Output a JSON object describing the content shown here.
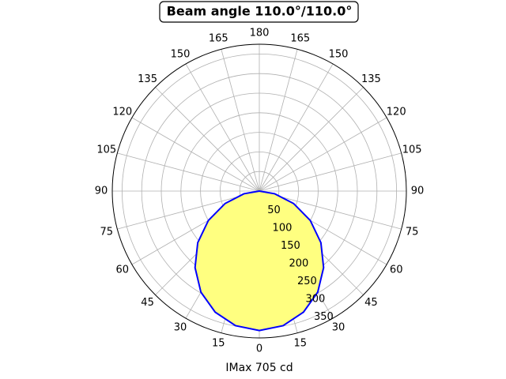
{
  "chart_data": {
    "type": "polar",
    "title": "Beam angle 110.0°/110.0°",
    "xlabel": "IMax 705 cd",
    "x": [
      -90,
      -80,
      -70,
      -60,
      -50,
      -40,
      -30,
      -20,
      -10,
      0,
      10,
      20,
      30,
      40,
      50,
      60,
      70,
      80,
      90
    ],
    "series": [
      {
        "color": "#0000ff",
        "fill": "#ffff80",
        "values": [
          0,
          40,
          93,
          150,
          205,
          255,
          298,
          329,
          349,
          356,
          349,
          329,
          298,
          255,
          205,
          150,
          93,
          40,
          0
        ]
      }
    ],
    "rlim": [
      0,
      375
    ],
    "rticks": [
      50,
      100,
      150,
      200,
      250,
      300,
      350
    ],
    "thetaticks": [
      0,
      15,
      30,
      45,
      60,
      75,
      90,
      105,
      120,
      135,
      150,
      165,
      180,
      {
        "value": -15,
        "label": "15"
      },
      {
        "value": -30,
        "label": "30"
      },
      {
        "value": -45,
        "label": "45"
      },
      {
        "value": -60,
        "label": "60"
      },
      {
        "value": -75,
        "label": "75"
      },
      {
        "value": -90,
        "label": "90"
      },
      {
        "value": -105,
        "label": "105"
      },
      {
        "value": -120,
        "label": "120"
      },
      {
        "value": -135,
        "label": "135"
      },
      {
        "value": -150,
        "label": "150"
      },
      {
        "value": -165,
        "label": "165"
      }
    ],
    "grid": true
  }
}
